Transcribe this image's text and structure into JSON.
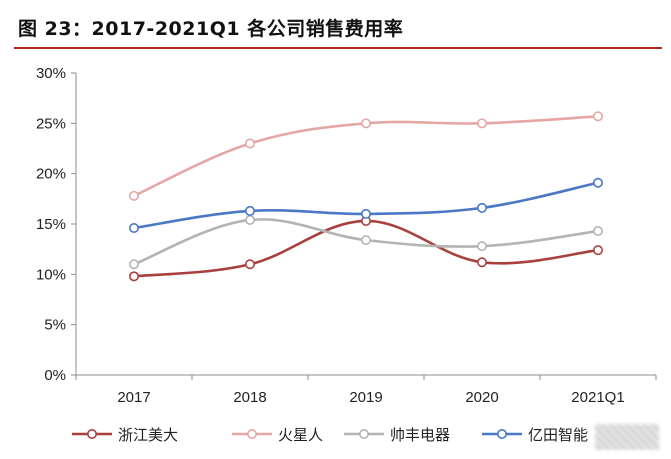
{
  "title": "图 23：2017-2021Q1 各公司销售费用率",
  "chart_data": {
    "type": "line",
    "title": "图 23：2017-2021Q1 各公司销售费用率",
    "categories": [
      "2017",
      "2018",
      "2019",
      "2020",
      "2021Q1"
    ],
    "y_ticks": [
      "0%",
      "5%",
      "10%",
      "15%",
      "20%",
      "25%",
      "30%"
    ],
    "ylim": [
      0,
      30
    ],
    "y_unit": "%",
    "grid": false,
    "legend_position": "bottom",
    "series": [
      {
        "name": "浙江美大",
        "color": "#a8413e",
        "values": [
          9.8,
          11.0,
          15.3,
          11.2,
          12.4
        ]
      },
      {
        "name": "火星人",
        "color": "#e5a7a5",
        "values": [
          17.8,
          23.0,
          25.0,
          25.0,
          25.7
        ]
      },
      {
        "name": "帅丰电器",
        "color": "#b4b4b4",
        "values": [
          11.0,
          15.4,
          13.4,
          12.8,
          14.3
        ]
      },
      {
        "name": "亿田智能",
        "color": "#4a78c4",
        "values": [
          14.6,
          16.3,
          16.0,
          16.6,
          19.1
        ]
      }
    ]
  }
}
